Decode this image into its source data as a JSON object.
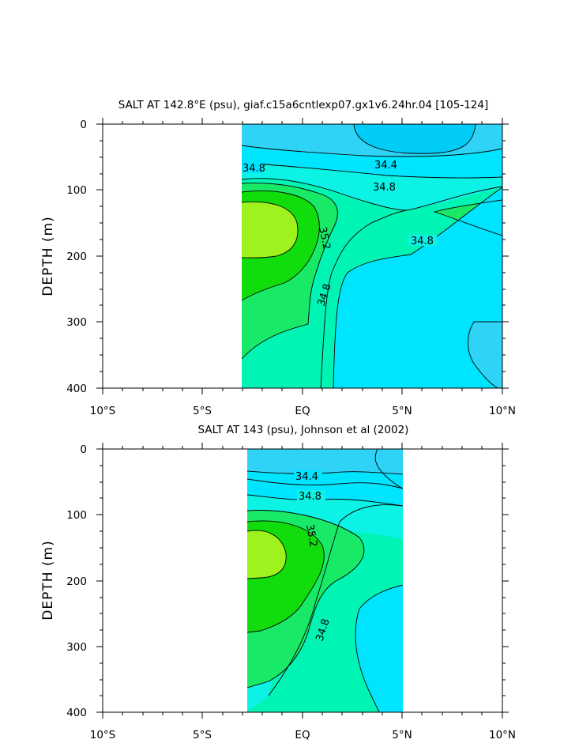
{
  "chart_data": [
    {
      "type": "contour",
      "title": "SALT AT 142.8°E (psu), giaf.c15a6cntlexp07.gx1v6.24hr.04 [105-124]",
      "ylabel": "DEPTH (m)",
      "xlim": [
        -10,
        10
      ],
      "ylim": [
        400,
        0
      ],
      "x_ticks": [
        -10,
        -5,
        0,
        5,
        10
      ],
      "x_tick_labels": [
        "10°S",
        "5°S",
        "EQ",
        "5°N",
        "10°N"
      ],
      "y_ticks": [
        0,
        100,
        200,
        300,
        400
      ],
      "y_tick_labels": [
        "0",
        "100",
        "200",
        "300",
        "400"
      ],
      "data_x_range": [
        -3.1,
        10
      ],
      "contour_labels": [
        {
          "text": "34.8",
          "x": -2.2,
          "y": 65
        },
        {
          "text": "34.4",
          "x": 3.6,
          "y": 62
        },
        {
          "text": "34.8",
          "x": 4.2,
          "y": 97
        },
        {
          "text": "35.2",
          "x": 1.2,
          "y": 165,
          "rotate": 78
        },
        {
          "text": "34.8",
          "x": 5.9,
          "y": 178
        },
        {
          "text": "34.8",
          "x": 0.8,
          "y": 255,
          "rotate": -72
        }
      ]
    },
    {
      "type": "contour",
      "title": "SALT AT 143 (psu), Johnson et al (2002)",
      "ylabel": "DEPTH (m)",
      "xlim": [
        -10,
        10
      ],
      "ylim": [
        400,
        0
      ],
      "x_ticks": [
        -10,
        -5,
        0,
        5,
        10
      ],
      "x_tick_labels": [
        "10°S",
        "5°S",
        "EQ",
        "5°N",
        "10°N"
      ],
      "y_ticks": [
        0,
        100,
        200,
        300,
        400
      ],
      "y_tick_labels": [
        "0",
        "100",
        "200",
        "300",
        "400"
      ],
      "data_x_range": [
        -2.8,
        5
      ],
      "contour_labels": [
        {
          "text": "34.4",
          "x": 0.3,
          "y": 40
        },
        {
          "text": "34.8",
          "x": 0.5,
          "y": 73
        },
        {
          "text": "35.2",
          "x": 0.3,
          "y": 140,
          "rotate": 80
        },
        {
          "text": "34.8",
          "x": 0.9,
          "y": 275,
          "rotate": -72
        }
      ]
    }
  ],
  "colors": {
    "c1": "#2fd3f6",
    "c2": "#00e5ff",
    "c3": "#0cf2e4",
    "c4": "#00f5b4",
    "c5": "#18ea68",
    "c6": "#11dd0c",
    "c7": "#9ef21e"
  }
}
